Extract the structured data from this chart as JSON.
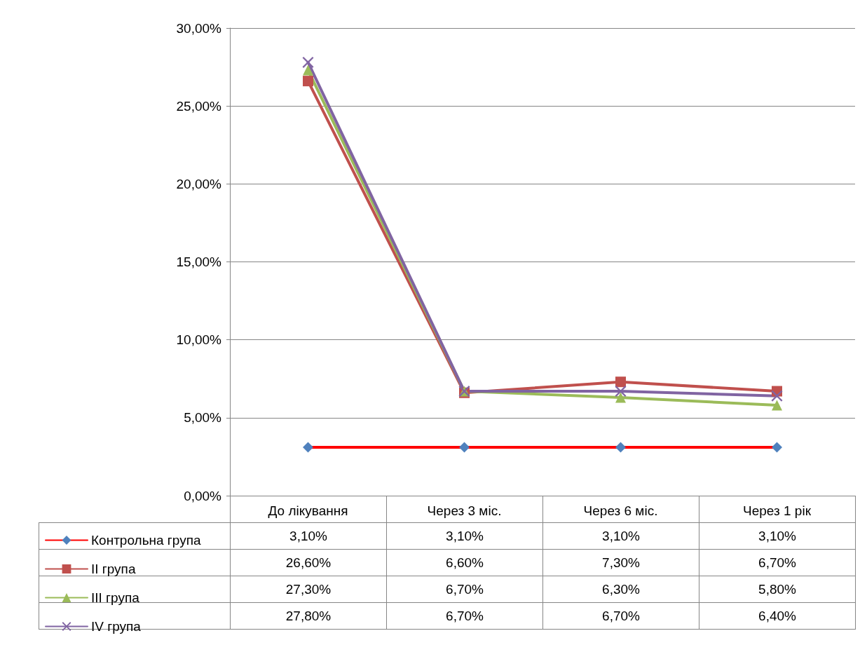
{
  "chart_data": {
    "type": "line",
    "categories": [
      "До лікування",
      "Через 3 міс.",
      "Через 6 міс.",
      "Через 1 рік"
    ],
    "series": [
      {
        "name": "Контрольна група",
        "color": "#ff0000",
        "colors": [
          "#4f81bd",
          "#4f81bd",
          "#4f81bd",
          "#4f81bd"
        ],
        "marker": "diamond",
        "values": [
          3.1,
          3.1,
          3.1,
          3.1
        ],
        "value_labels": [
          "3,10%",
          "3,10%",
          "3,10%",
          "3,10%"
        ]
      },
      {
        "name": "II група",
        "color": "#c0504d",
        "marker": "square",
        "values": [
          26.6,
          6.6,
          7.3,
          6.7
        ],
        "value_labels": [
          "26,60%",
          "6,60%",
          "7,30%",
          "6,70%"
        ]
      },
      {
        "name": "III група",
        "color": "#9bbb59",
        "marker": "triangle",
        "values": [
          27.3,
          6.7,
          6.3,
          5.8
        ],
        "value_labels": [
          "27,30%",
          "6,70%",
          "6,30%",
          "5,80%"
        ]
      },
      {
        "name": "IV група",
        "color": "#8064a2",
        "marker": "cross",
        "values": [
          27.8,
          6.7,
          6.7,
          6.4
        ],
        "value_labels": [
          "27,80%",
          "6,70%",
          "6,70%",
          "6,40%"
        ]
      }
    ],
    "ylim": [
      0,
      30
    ],
    "yticks": [
      {
        "value": 0,
        "label": "0,00%"
      },
      {
        "value": 5,
        "label": "5,00%"
      },
      {
        "value": 10,
        "label": "10,00%"
      },
      {
        "value": 15,
        "label": "15,00%"
      },
      {
        "value": 20,
        "label": "20,00%"
      },
      {
        "value": 25,
        "label": "25,00%"
      },
      {
        "value": 30,
        "label": "30,00%"
      }
    ],
    "grid": "y",
    "legend": "bottom"
  }
}
